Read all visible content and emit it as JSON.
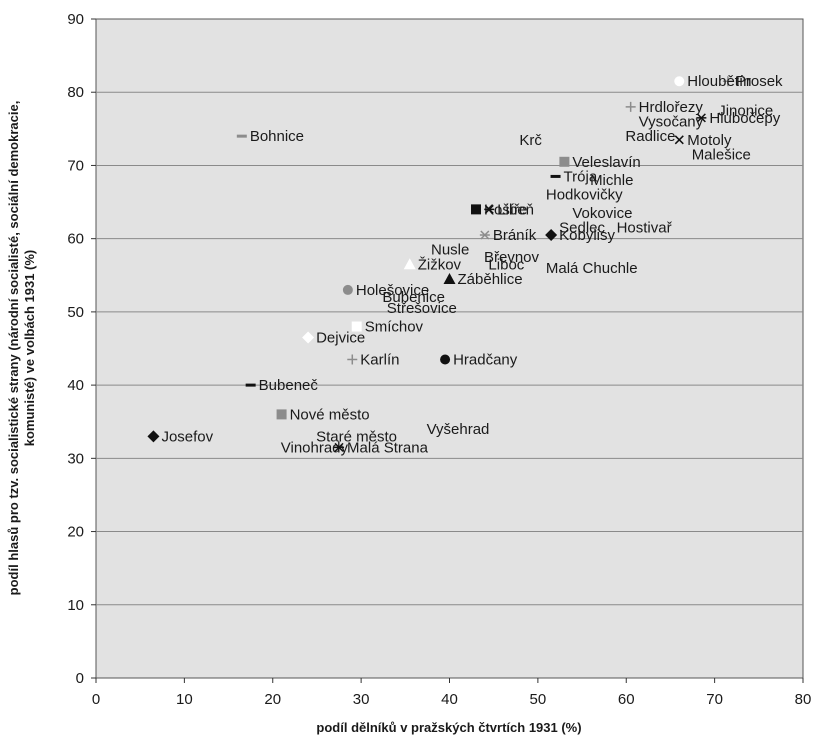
{
  "chart_data": {
    "type": "scatter",
    "xlabel": "podíl dělníků v pražských čtvrtích 1931 (%)",
    "ylabel_lines": [
      "podíl hlasů pro tzv. socialistické strany (národní socialisté, sociální demokracie,",
      "komunisté) ve volbách 1931 (%)"
    ],
    "xlim": [
      0,
      80
    ],
    "ylim": [
      0,
      90
    ],
    "xticks": [
      "0",
      "10",
      "20",
      "30",
      "40",
      "50",
      "60",
      "70",
      "80"
    ],
    "yticks": [
      "0",
      "10",
      "20",
      "30",
      "40",
      "50",
      "60",
      "70",
      "80",
      "90"
    ],
    "grid": "horizontal",
    "colors": {
      "plot_bg": "#e2e2e2",
      "grid": "#8a8a8a",
      "marker_dark": "#111111",
      "marker_gray": "#8c8c8c",
      "marker_light": "#ffffff"
    },
    "points": [
      {
        "name": "Prosek",
        "x": 71.5,
        "y": 81.5,
        "marker": "plus-gray"
      },
      {
        "name": "Hloubětín",
        "x": 66,
        "y": 81.5,
        "marker": "circle-white"
      },
      {
        "name": "Hrdlořezy",
        "x": 60.5,
        "y": 78,
        "marker": "plus-gray"
      },
      {
        "name": "Jinonice",
        "x": 69.5,
        "y": 77.5,
        "marker": "none"
      },
      {
        "name": "Hlubočepy",
        "x": 68.5,
        "y": 76.5,
        "marker": "asterisk-dark"
      },
      {
        "name": "Vysočany",
        "x": 60.5,
        "y": 76,
        "marker": "none"
      },
      {
        "name": "Radlice",
        "x": 59,
        "y": 74,
        "marker": "none"
      },
      {
        "name": "Motoly",
        "x": 66,
        "y": 73.5,
        "marker": "x-dark"
      },
      {
        "name": "Bohnice",
        "x": 16.5,
        "y": 74,
        "marker": "dash-gray"
      },
      {
        "name": "Krč",
        "x": 47,
        "y": 73.5,
        "marker": "none"
      },
      {
        "name": "Malešice",
        "x": 66.5,
        "y": 71.5,
        "marker": "none"
      },
      {
        "name": "Veleslavín",
        "x": 53,
        "y": 70.5,
        "marker": "square-gray"
      },
      {
        "name": "Trója",
        "x": 52,
        "y": 68.5,
        "marker": "dash-dark"
      },
      {
        "name": "Michle",
        "x": 55,
        "y": 68,
        "marker": "none"
      },
      {
        "name": "Hodkovičky",
        "x": 50,
        "y": 66,
        "marker": "none"
      },
      {
        "name": "Košíře",
        "x": 43,
        "y": 64,
        "marker": "square-dark"
      },
      {
        "name": "Libeň",
        "x": 44.5,
        "y": 64,
        "marker": "asterisk-dark"
      },
      {
        "name": "Vokovice",
        "x": 53,
        "y": 63.5,
        "marker": "none"
      },
      {
        "name": "Sedlec",
        "x": 51.5,
        "y": 61.5,
        "marker": "none"
      },
      {
        "name": "Hostivař",
        "x": 58,
        "y": 61.5,
        "marker": "none"
      },
      {
        "name": "Bráník",
        "x": 44,
        "y": 60.5,
        "marker": "asterisk-gray"
      },
      {
        "name": "Kobylisy",
        "x": 51.5,
        "y": 60.5,
        "marker": "diamond-dark"
      },
      {
        "name": "Nusle",
        "x": 37,
        "y": 58.5,
        "marker": "none"
      },
      {
        "name": "Břevnov",
        "x": 43,
        "y": 57.5,
        "marker": "none"
      },
      {
        "name": "Žižkov",
        "x": 35.5,
        "y": 56.5,
        "marker": "triangle-white"
      },
      {
        "name": "Liboc",
        "x": 43.5,
        "y": 56.5,
        "marker": "none"
      },
      {
        "name": "Malá Chuchle",
        "x": 50,
        "y": 56,
        "marker": "none"
      },
      {
        "name": "Záběhlice",
        "x": 40,
        "y": 54.5,
        "marker": "triangle-dark"
      },
      {
        "name": "Holešovice",
        "x": 28.5,
        "y": 53,
        "marker": "circle-gray"
      },
      {
        "name": "Bubenice",
        "x": 31.5,
        "y": 52,
        "marker": "none"
      },
      {
        "name": "Střešovice",
        "x": 32,
        "y": 50.5,
        "marker": "none"
      },
      {
        "name": "Smíchov",
        "x": 29.5,
        "y": 48,
        "marker": "square-white"
      },
      {
        "name": "Dejvice",
        "x": 24,
        "y": 46.5,
        "marker": "diamond-white"
      },
      {
        "name": "Karlín",
        "x": 29,
        "y": 43.5,
        "marker": "plus-gray"
      },
      {
        "name": "Hradčany",
        "x": 39.5,
        "y": 43.5,
        "marker": "circle-dark"
      },
      {
        "name": "Bubeneč",
        "x": 17.5,
        "y": 40,
        "marker": "dash-dark"
      },
      {
        "name": "Nové město",
        "x": 21,
        "y": 36,
        "marker": "square-gray"
      },
      {
        "name": "Vyšehrad",
        "x": 36.5,
        "y": 34,
        "marker": "none"
      },
      {
        "name": "Staré město",
        "x": 24,
        "y": 33,
        "marker": "none"
      },
      {
        "name": "Josefov",
        "x": 6.5,
        "y": 33,
        "marker": "diamond-dark"
      },
      {
        "name": "Vinohrady",
        "x": 20,
        "y": 31.5,
        "marker": "none"
      },
      {
        "name": "Malá Strana",
        "x": 27.5,
        "y": 31.5,
        "marker": "asterisk-dark"
      }
    ]
  }
}
